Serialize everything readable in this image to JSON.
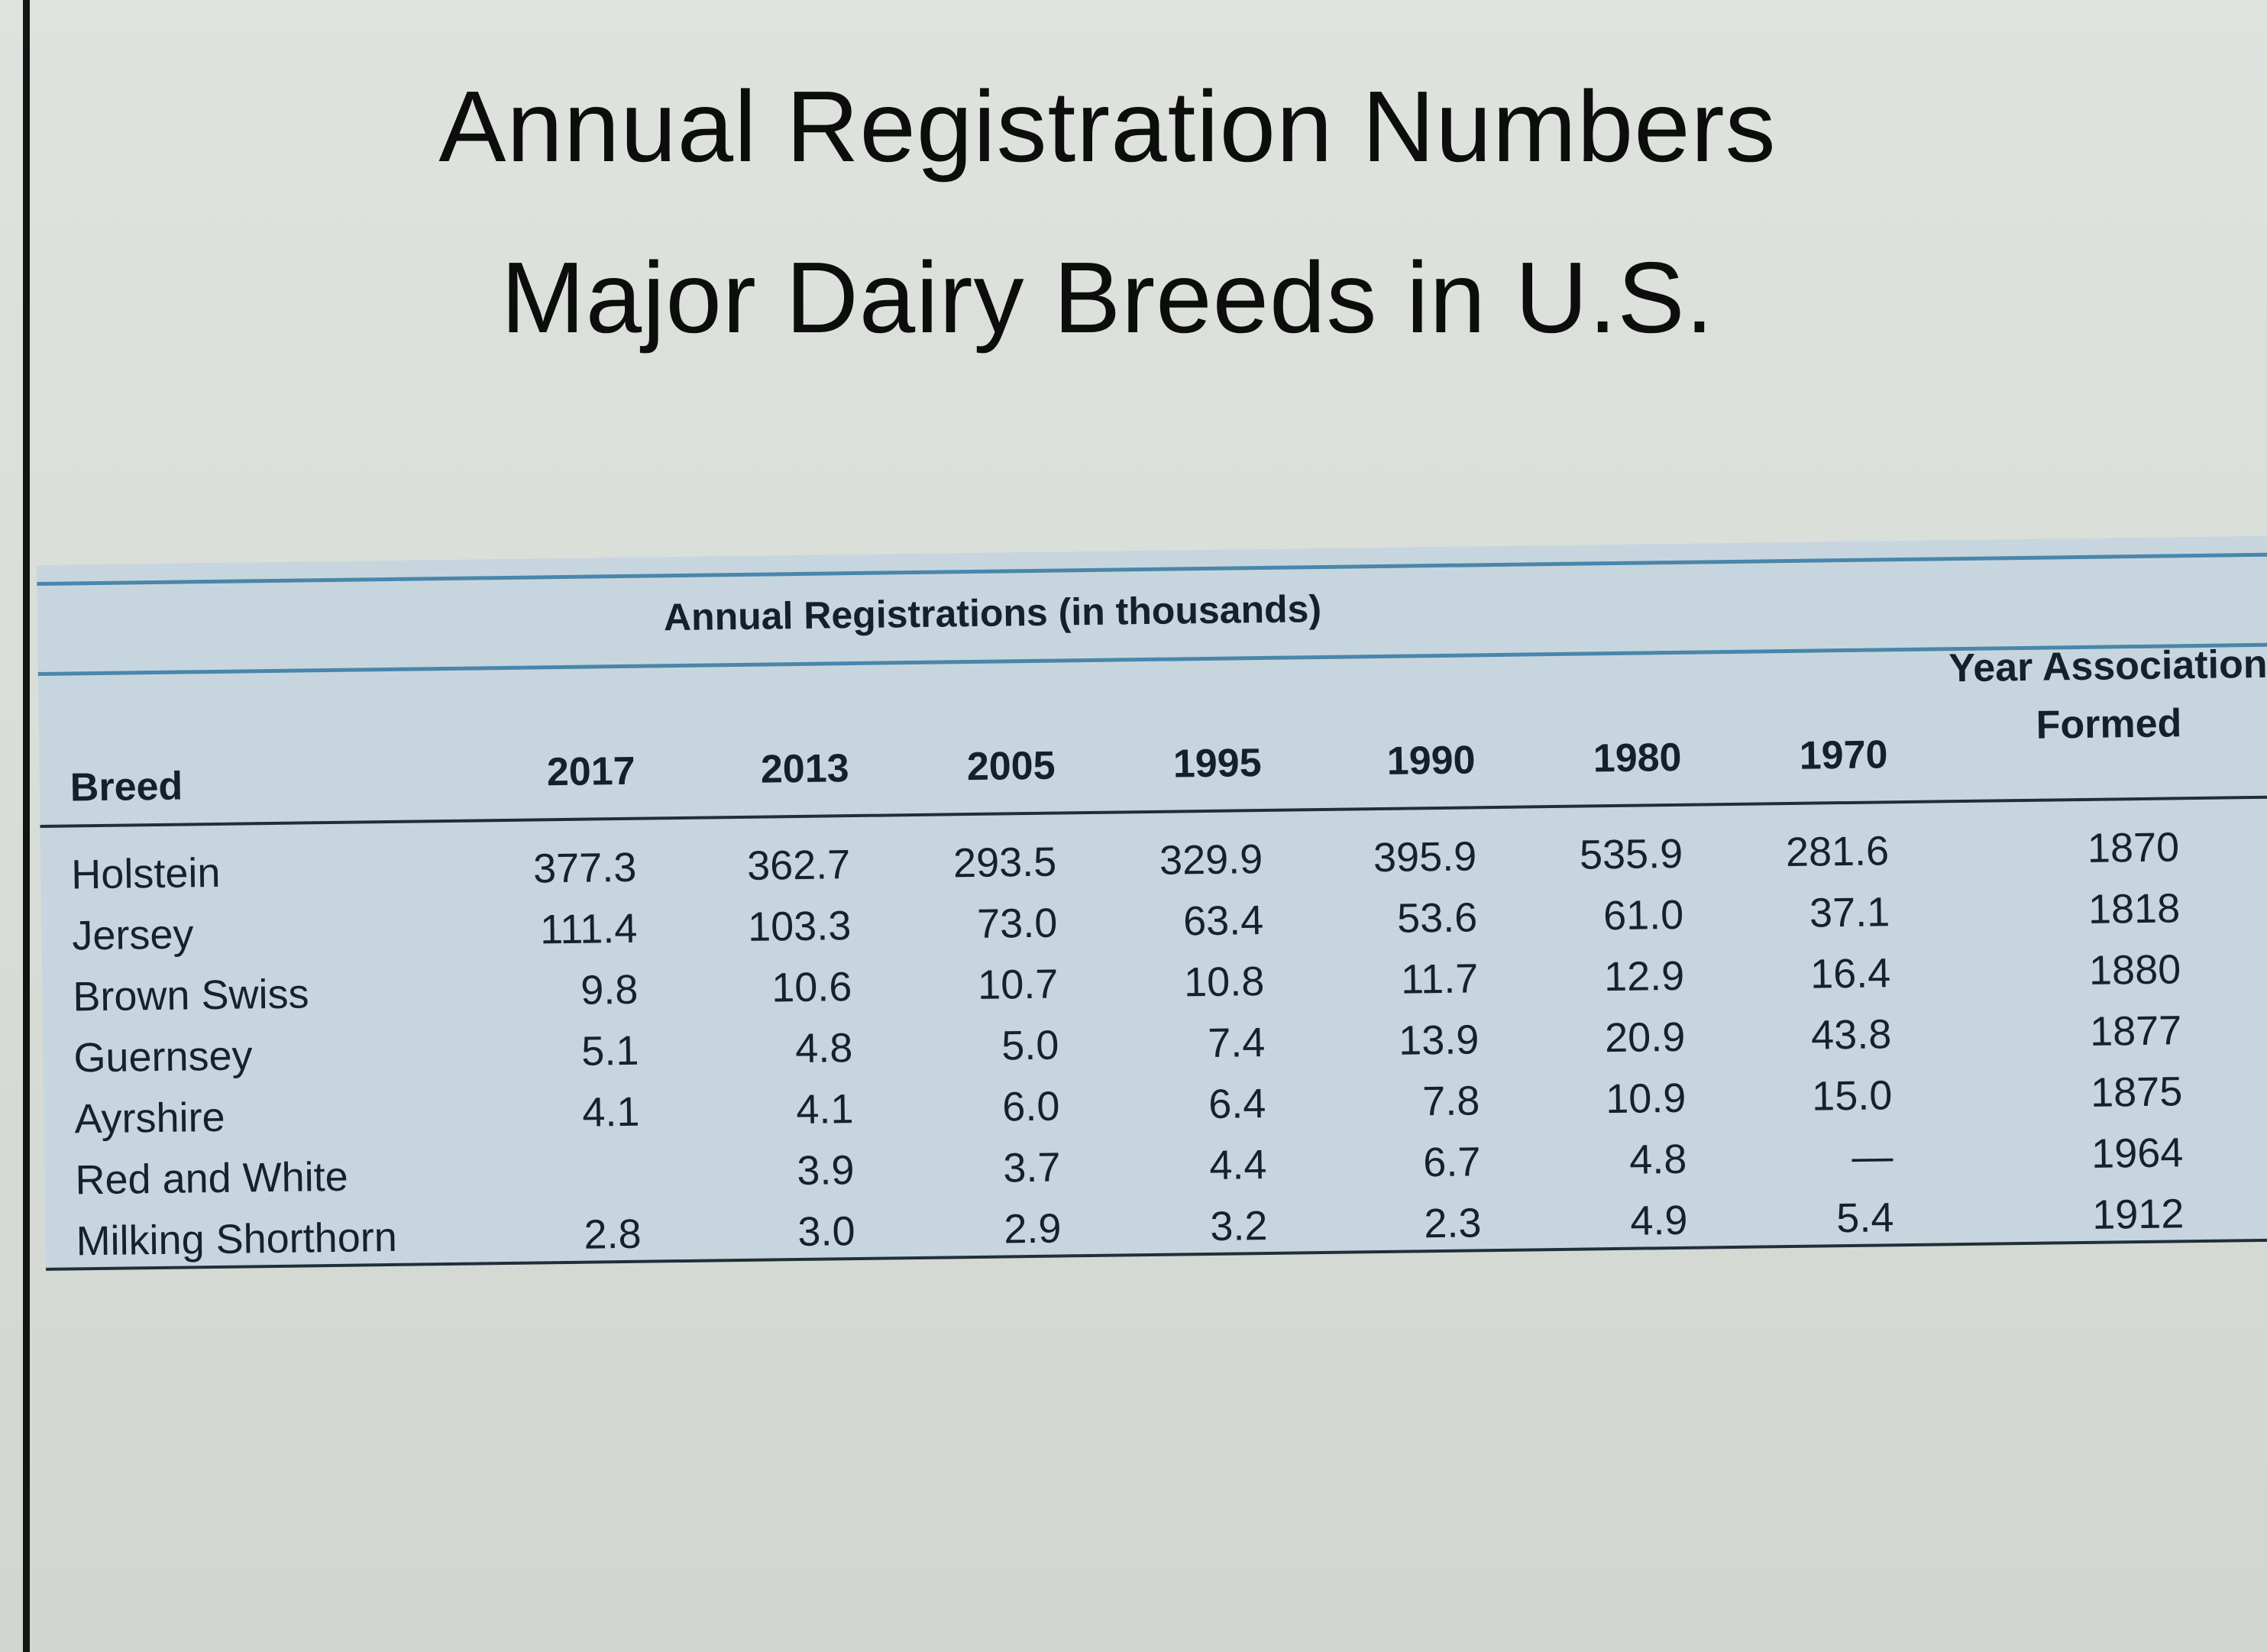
{
  "title": {
    "line1": "Annual Registration Numbers",
    "line2": "Major Dairy Breeds in U.S."
  },
  "table": {
    "group_header": "Annual Registrations (in thousands)",
    "breed_header": "Breed",
    "year_headers": [
      "2017",
      "2013",
      "2005",
      "1995",
      "1990",
      "1980",
      "1970"
    ],
    "assoc_header_line1": "Year Association",
    "assoc_header_line2": "Formed",
    "rows": [
      {
        "breed": "Holstein",
        "values": [
          "377.3",
          "362.7",
          "293.5",
          "329.9",
          "395.9",
          "535.9",
          "281.6"
        ],
        "formed": "1870"
      },
      {
        "breed": "Jersey",
        "values": [
          "111.4",
          "103.3",
          "73.0",
          "63.4",
          "53.6",
          "61.0",
          "37.1"
        ],
        "formed": "1818"
      },
      {
        "breed": "Brown Swiss",
        "values": [
          "9.8",
          "10.6",
          "10.7",
          "10.8",
          "11.7",
          "12.9",
          "16.4"
        ],
        "formed": "1880"
      },
      {
        "breed": "Guernsey",
        "values": [
          "5.1",
          "4.8",
          "5.0",
          "7.4",
          "13.9",
          "20.9",
          "43.8"
        ],
        "formed": "1877"
      },
      {
        "breed": "Ayrshire",
        "values": [
          "4.1",
          "4.1",
          "6.0",
          "6.4",
          "7.8",
          "10.9",
          "15.0"
        ],
        "formed": "1875"
      },
      {
        "breed": "Red and White",
        "values": [
          "",
          "3.9",
          "3.7",
          "4.4",
          "6.7",
          "4.8",
          "—"
        ],
        "formed": "1964"
      },
      {
        "breed": "Milking Shorthorn",
        "values": [
          "2.8",
          "3.0",
          "2.9",
          "3.2",
          "2.3",
          "4.9",
          "5.4"
        ],
        "formed": "1912"
      }
    ]
  }
}
